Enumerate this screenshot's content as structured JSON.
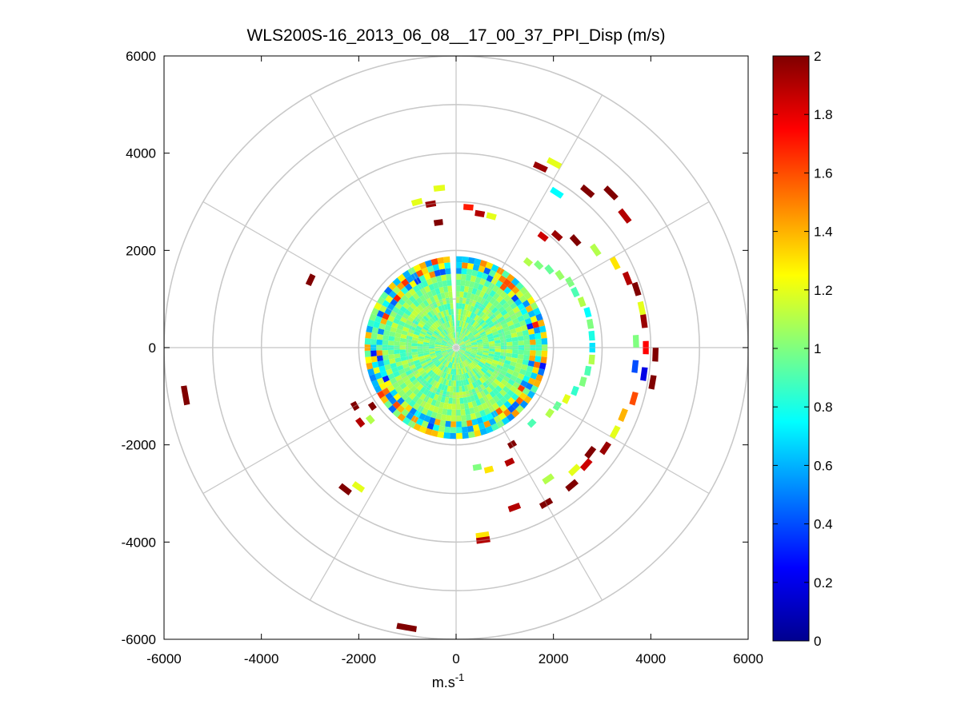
{
  "chart_data": {
    "type": "polar-ppi-scatter",
    "title": "WLS200S-16_2013_06_08__17_00_37_PPI_Disp (m/s)",
    "xlabel": "m.s",
    "xlabel_superscript": "-1",
    "ylabel": "",
    "xlim": [
      -6000,
      6000
    ],
    "ylim": [
      -6000,
      6000
    ],
    "x_ticks": [
      -6000,
      -4000,
      -2000,
      0,
      2000,
      4000,
      6000
    ],
    "y_ticks": [
      6000,
      4000,
      2000,
      0,
      -2000,
      -4000,
      -6000
    ],
    "x_tick_labels": [
      "-6000",
      "-4000",
      "-2000",
      "0",
      "2000",
      "4000",
      "6000"
    ],
    "y_tick_labels": [
      "6000",
      "4000",
      "2000",
      "0",
      "-2000",
      "-4000",
      "-6000"
    ],
    "range_rings_m": [
      1000,
      2000,
      3000,
      4000,
      5000,
      6000
    ],
    "spoke_angles_deg": [
      0,
      30,
      60,
      90,
      120,
      150,
      180,
      210,
      240,
      270,
      300,
      330
    ],
    "colorbar": {
      "min": 0,
      "max": 2,
      "ticks": [
        0,
        0.2,
        0.4,
        0.6,
        0.8,
        1,
        1.2,
        1.4,
        1.6,
        1.8,
        2
      ],
      "tick_labels": [
        "0",
        "0.2",
        "0.4",
        "0.6",
        "0.8",
        "1",
        "1.2",
        "1.4",
        "1.6",
        "1.8",
        "2"
      ],
      "colormap": "jet"
    },
    "core": {
      "note": "dense field of ~1 m/s values out to about 1800 m range",
      "max_range_m": 1800,
      "gap_bearing_deg": 357
    },
    "cells": [
      {
        "bearing": 40,
        "range": 2300,
        "value": 1.1
      },
      {
        "bearing": 45,
        "range": 2400,
        "value": 1.0
      },
      {
        "bearing": 50,
        "range": 2500,
        "value": 0.95
      },
      {
        "bearing": 55,
        "range": 2600,
        "value": 1.05
      },
      {
        "bearing": 60,
        "range": 2700,
        "value": 1.0
      },
      {
        "bearing": 65,
        "range": 2700,
        "value": 0.9
      },
      {
        "bearing": 70,
        "range": 2750,
        "value": 1.1
      },
      {
        "bearing": 75,
        "range": 2800,
        "value": 0.75
      },
      {
        "bearing": 80,
        "range": 2800,
        "value": 1.0
      },
      {
        "bearing": 85,
        "range": 2800,
        "value": 0.8
      },
      {
        "bearing": 90,
        "range": 2800,
        "value": 0.7
      },
      {
        "bearing": 95,
        "range": 2800,
        "value": 1.1
      },
      {
        "bearing": 100,
        "range": 2750,
        "value": 0.9
      },
      {
        "bearing": 105,
        "range": 2700,
        "value": 1.0
      },
      {
        "bearing": 110,
        "range": 2600,
        "value": 0.85
      },
      {
        "bearing": 115,
        "range": 2500,
        "value": 1.2
      },
      {
        "bearing": 120,
        "range": 2400,
        "value": 0.95
      },
      {
        "bearing": 125,
        "range": 2350,
        "value": 1.1
      },
      {
        "bearing": 135,
        "range": 2200,
        "value": 0.9
      },
      {
        "bearing": 150,
        "range": 2300,
        "value": 2.0
      },
      {
        "bearing": 155,
        "range": 2600,
        "value": 1.9
      },
      {
        "bearing": 165,
        "range": 2600,
        "value": 1.3
      },
      {
        "bearing": 170,
        "range": 2500,
        "value": 1.0
      },
      {
        "bearing": 38,
        "range": 2900,
        "value": 1.85
      },
      {
        "bearing": 42,
        "range": 3100,
        "value": 1.95
      },
      {
        "bearing": 48,
        "range": 3300,
        "value": 2.0
      },
      {
        "bearing": 55,
        "range": 3500,
        "value": 1.1
      },
      {
        "bearing": 62,
        "range": 3700,
        "value": 1.3
      },
      {
        "bearing": 68,
        "range": 3800,
        "value": 1.9
      },
      {
        "bearing": 72,
        "range": 3900,
        "value": 2.0
      },
      {
        "bearing": 78,
        "range": 3900,
        "value": 1.2
      },
      {
        "bearing": 82,
        "range": 3900,
        "value": 1.95
      },
      {
        "bearing": 88,
        "range": 3700,
        "value": 1.0
      },
      {
        "bearing": 90,
        "range": 3900,
        "value": 1.75
      },
      {
        "bearing": 92,
        "range": 4100,
        "value": 2.0
      },
      {
        "bearing": 96,
        "range": 3700,
        "value": 0.4
      },
      {
        "bearing": 98,
        "range": 3900,
        "value": 0.2
      },
      {
        "bearing": 100,
        "range": 4100,
        "value": 2.0
      },
      {
        "bearing": 106,
        "range": 3800,
        "value": 1.6
      },
      {
        "bearing": 112,
        "range": 3700,
        "value": 1.4
      },
      {
        "bearing": 118,
        "range": 3700,
        "value": 1.2
      },
      {
        "bearing": 124,
        "range": 3700,
        "value": 1.95
      },
      {
        "bearing": 128,
        "range": 3500,
        "value": 2.0
      },
      {
        "bearing": 132,
        "range": 3600,
        "value": 1.85
      },
      {
        "bearing": 136,
        "range": 3500,
        "value": 1.2
      },
      {
        "bearing": 140,
        "range": 3700,
        "value": 2.0
      },
      {
        "bearing": 145,
        "range": 3300,
        "value": 1.1
      },
      {
        "bearing": 150,
        "range": 3700,
        "value": 2.0
      },
      {
        "bearing": 160,
        "range": 3500,
        "value": 1.9
      },
      {
        "bearing": 172,
        "range": 3900,
        "value": 1.3
      },
      {
        "bearing": 172,
        "range": 4000,
        "value": 1.9
      },
      {
        "bearing": 190,
        "range": 5850,
        "value": 2.0
      },
      {
        "bearing": 215,
        "range": 3500,
        "value": 1.2
      },
      {
        "bearing": 218,
        "range": 3700,
        "value": 2.0
      },
      {
        "bearing": 230,
        "range": 2300,
        "value": 1.1
      },
      {
        "bearing": 232,
        "range": 2500,
        "value": 1.9
      },
      {
        "bearing": 235,
        "range": 2100,
        "value": 2.0
      },
      {
        "bearing": 240,
        "range": 2400,
        "value": 2.0
      },
      {
        "bearing": 260,
        "range": 5650,
        "value": 2.0
      },
      {
        "bearing": 295,
        "range": 3300,
        "value": 2.0
      },
      {
        "bearing": 345,
        "range": 3100,
        "value": 1.2
      },
      {
        "bearing": 350,
        "range": 3000,
        "value": 1.95
      },
      {
        "bearing": 352,
        "range": 2600,
        "value": 2.0
      },
      {
        "bearing": 354,
        "range": 3300,
        "value": 1.2
      },
      {
        "bearing": 5,
        "range": 2900,
        "value": 1.7
      },
      {
        "bearing": 10,
        "range": 2800,
        "value": 1.9
      },
      {
        "bearing": 15,
        "range": 2800,
        "value": 1.2
      },
      {
        "bearing": 25,
        "range": 4100,
        "value": 1.95
      },
      {
        "bearing": 28,
        "range": 4300,
        "value": 1.2
      },
      {
        "bearing": 33,
        "range": 3800,
        "value": 0.75
      },
      {
        "bearing": 40,
        "range": 4200,
        "value": 2.0
      },
      {
        "bearing": 45,
        "range": 4500,
        "value": 2.0
      },
      {
        "bearing": 52,
        "range": 4400,
        "value": 1.9
      }
    ]
  }
}
